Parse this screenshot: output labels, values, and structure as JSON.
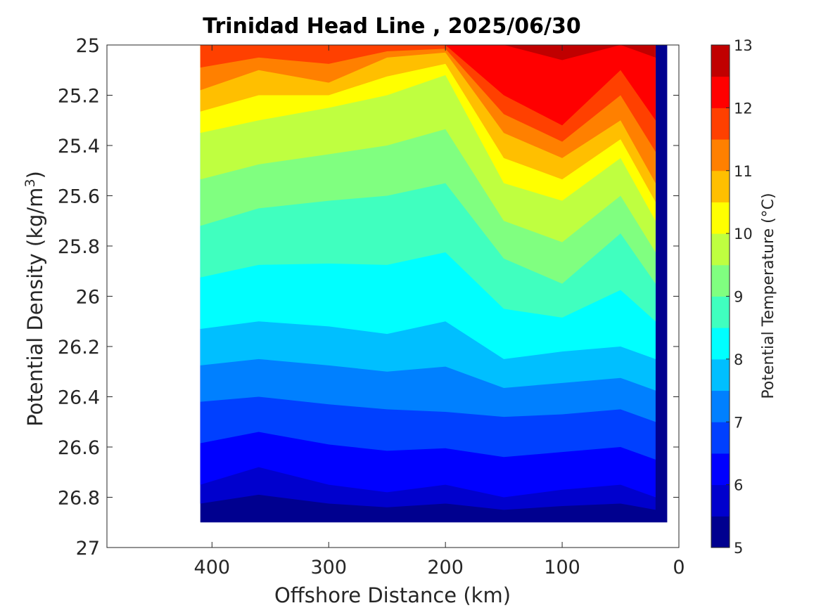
{
  "chart_data": {
    "type": "heatmap",
    "title": "Trinidad Head Line , 2025/06/30",
    "xlabel": "Offshore Distance (km)",
    "ylabel_main": "Potential Density (kg/m",
    "ylabel_sup": "3",
    "ylabel_close": ")",
    "colorbar_label": "Potential Temperature (°C)",
    "xlim": [
      490,
      0
    ],
    "ylim": [
      25,
      27
    ],
    "x_reversed": true,
    "y_reversed": true,
    "x_ticks": [
      400,
      300,
      200,
      100,
      0
    ],
    "x_tick_labels": [
      "400",
      "300",
      "200",
      "100",
      "0"
    ],
    "y_ticks": [
      25,
      25.2,
      25.4,
      25.6,
      25.8,
      26,
      26.2,
      26.4,
      26.6,
      26.8,
      27
    ],
    "y_tick_labels": [
      "25",
      "25.2",
      "25.4",
      "25.6",
      "25.8",
      "26",
      "26.2",
      "26.4",
      "26.6",
      "26.8",
      "27"
    ],
    "colorbar_range": [
      5,
      13
    ],
    "colorbar_ticks": [
      5,
      6,
      7,
      8,
      9,
      10,
      11,
      12,
      13
    ],
    "colorbar_tick_labels": [
      "5",
      "6",
      "7",
      "8",
      "9",
      "10",
      "11",
      "12",
      "13"
    ],
    "contour_levels": [
      5,
      5.5,
      6,
      6.5,
      7,
      7.5,
      8,
      8.5,
      9,
      9.5,
      10,
      10.5,
      11,
      11.5,
      12,
      12.5,
      13
    ],
    "colormap": [
      "#00008f",
      "#0000b8",
      "#0000e1",
      "#000aff",
      "#0033ff",
      "#005cff",
      "#0085ff",
      "#00adff",
      "#00d6ff",
      "#00ffff",
      "#2bffd4",
      "#55ffaa",
      "#80ff80",
      "#aaff55",
      "#d4ff2b",
      "#ffff00",
      "#ffd600",
      "#ffad00",
      "#ff8500",
      "#ff5c00",
      "#ff3300",
      "#ff0a00",
      "#e10000",
      "#b80000",
      "#8f0000"
    ],
    "band_colors": [
      "#00008f",
      "#0000cd",
      "#0000ff",
      "#0040ff",
      "#0080ff",
      "#00bfff",
      "#00ffff",
      "#40ffbf",
      "#80ff80",
      "#bfff40",
      "#ffff00",
      "#ffbf00",
      "#ff8000",
      "#ff4000",
      "#ff0000",
      "#c00000"
    ],
    "section_x_extent_km": [
      410,
      10
    ],
    "section_y_extent": [
      25,
      26.9
    ],
    "isotherm_depth_samples": {
      "offshore_km": [
        410,
        360,
        300,
        250,
        200,
        150,
        100,
        50,
        20
      ],
      "density_at_12C": [
        25.0,
        25.0,
        25.0,
        25.0,
        25.0,
        25.2,
        25.32,
        25.1,
        25.3
      ],
      "density_at_11C": [
        25.18,
        25.1,
        25.15,
        25.05,
        25.03,
        25.35,
        25.45,
        25.3,
        25.55
      ],
      "density_at_10C": [
        25.35,
        25.3,
        25.25,
        25.2,
        25.12,
        25.55,
        25.62,
        25.45,
        25.7
      ],
      "density_at_9C": [
        25.72,
        25.65,
        25.62,
        25.6,
        25.55,
        25.85,
        25.95,
        25.75,
        25.95
      ],
      "density_at_8C": [
        26.13,
        26.1,
        26.12,
        26.15,
        26.1,
        26.25,
        26.22,
        26.2,
        26.25
      ],
      "density_at_7C": [
        26.42,
        26.4,
        26.43,
        26.45,
        26.46,
        26.48,
        26.47,
        26.45,
        26.5
      ],
      "density_at_6C": [
        26.75,
        26.68,
        26.75,
        26.78,
        26.75,
        26.8,
        26.77,
        26.75,
        26.8
      ]
    }
  }
}
